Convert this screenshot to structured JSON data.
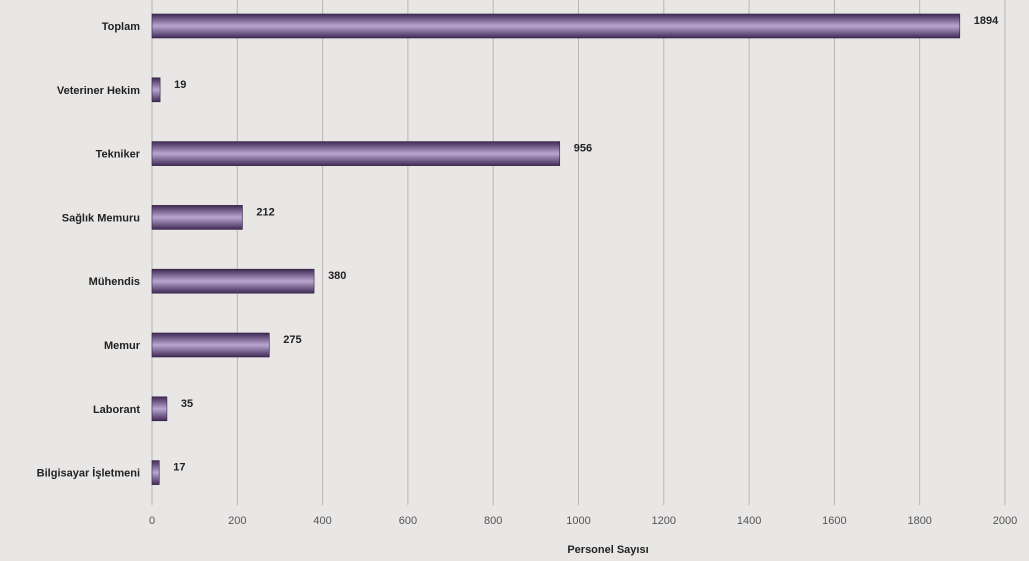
{
  "chart_data": {
    "type": "bar",
    "orientation": "horizontal",
    "categories": [
      "Toplam",
      "Veteriner Hekim",
      "Tekniker",
      "Sağlık Memuru",
      "Mühendis",
      "Memur",
      "Laborant",
      "Bilgisayar İşletmeni"
    ],
    "values": [
      1894,
      19,
      956,
      212,
      380,
      275,
      35,
      17
    ],
    "xlabel": "Personel Sayısı",
    "ylabel": "",
    "xlim": [
      0,
      2000
    ],
    "xticks": [
      0,
      200,
      400,
      600,
      800,
      1000,
      1200,
      1400,
      1600,
      1800,
      2000
    ],
    "grid": "vertical",
    "colors": {
      "bar_light": "#b9a6cf",
      "bar_mid": "#7a5d9a",
      "bar_dark": "#3f2a55",
      "background": "#e9e7e6"
    }
  }
}
